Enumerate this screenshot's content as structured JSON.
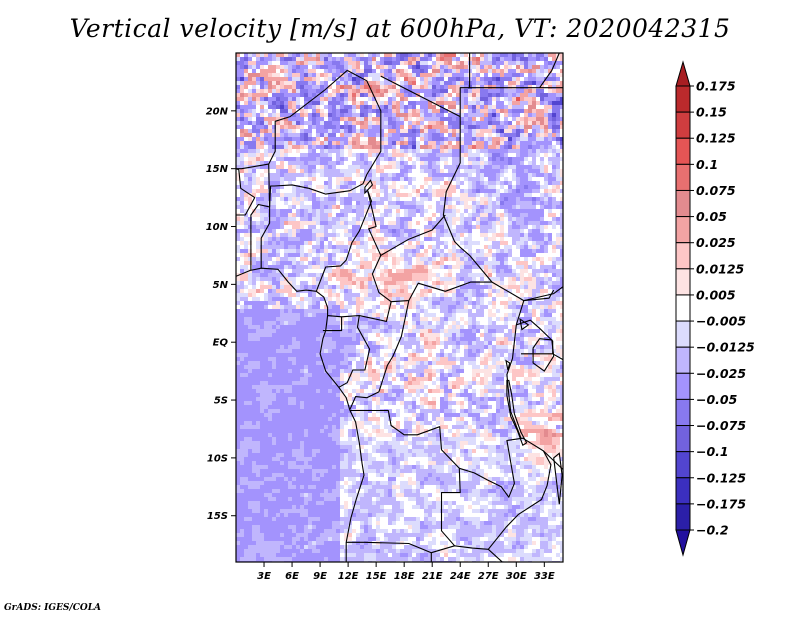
{
  "chart_data": {
    "type": "heatmap",
    "title": "Vertical velocity [m/s] at 600hPa, VT: 2020042315",
    "variable": "Vertical velocity",
    "units": "m/s",
    "level": "600hPa",
    "valid_time": "2020042315",
    "xlabel": "",
    "ylabel": "",
    "x_range_deg": [
      0,
      35
    ],
    "y_range_deg": [
      -19,
      25
    ],
    "x_ticks": [
      {
        "value": 3,
        "label": "3E"
      },
      {
        "value": 6,
        "label": "6E"
      },
      {
        "value": 9,
        "label": "9E"
      },
      {
        "value": 12,
        "label": "12E"
      },
      {
        "value": 15,
        "label": "15E"
      },
      {
        "value": 18,
        "label": "18E"
      },
      {
        "value": 21,
        "label": "21E"
      },
      {
        "value": 24,
        "label": "24E"
      },
      {
        "value": 27,
        "label": "27E"
      },
      {
        "value": 30,
        "label": "30E"
      },
      {
        "value": 33,
        "label": "33E"
      }
    ],
    "y_ticks": [
      {
        "value": 20,
        "label": "20N"
      },
      {
        "value": 15,
        "label": "15N"
      },
      {
        "value": 10,
        "label": "10N"
      },
      {
        "value": 5,
        "label": "5N"
      },
      {
        "value": 0,
        "label": "EQ"
      },
      {
        "value": -5,
        "label": "5S"
      },
      {
        "value": -10,
        "label": "10S"
      },
      {
        "value": -15,
        "label": "15S"
      }
    ],
    "colorbar": {
      "orientation": "vertical",
      "placement": "right",
      "levels": [
        {
          "label": "0.175",
          "value": 0.175
        },
        {
          "label": "0.15",
          "value": 0.15
        },
        {
          "label": "0.125",
          "value": 0.125
        },
        {
          "label": "0.1",
          "value": 0.1
        },
        {
          "label": "0.075",
          "value": 0.075
        },
        {
          "label": "0.05",
          "value": 0.05
        },
        {
          "label": "0.025",
          "value": 0.025
        },
        {
          "label": "0.0125",
          "value": 0.0125
        },
        {
          "label": "0.005",
          "value": 0.005
        },
        {
          "label": "-0.005",
          "value": -0.005
        },
        {
          "label": "-0.0125",
          "value": -0.0125
        },
        {
          "label": "-0.025",
          "value": -0.025
        },
        {
          "label": "-0.05",
          "value": -0.05
        },
        {
          "label": "-0.075",
          "value": -0.075
        },
        {
          "label": "-0.1",
          "value": -0.1
        },
        {
          "label": "-0.125",
          "value": -0.125
        },
        {
          "label": "-0.175",
          "value": -0.175
        },
        {
          "label": "-0.2",
          "value": -0.2
        }
      ],
      "colors_top_to_bottom": [
        "#a81e22",
        "#bb2a2c",
        "#cf3d3f",
        "#e45555",
        "#e87070",
        "#e38b8f",
        "#f3a3a3",
        "#fdc6c6",
        "#fde3e3",
        "#ffffff",
        "#dcdcfd",
        "#c0b6fd",
        "#a393fd",
        "#8879ef",
        "#7262de",
        "#5245d0",
        "#3b2fbf",
        "#2b1fa8",
        "#22109e"
      ],
      "extend": "both"
    },
    "field_summary": {
      "predominant_positive_regions": [
        "Sahel/Niger-Chad north (~17-24N, 3-22E)",
        "Cameroon/CAR (~3-10N, 10-25E)",
        "East African lakes (~5-10S, 30-34E)"
      ],
      "predominant_negative_regions": [
        "Gulf of Guinea / South Atlantic (~0-19S, 0-12E)",
        "Chad/Sudan east (~12-20N, 22-34E)",
        "Angola/Zambia (~10-18S, 15-30E)"
      ],
      "value_range_shown": [
        -0.2,
        0.175
      ]
    }
  },
  "footer": {
    "credit": "GrADS: IGES/COLA"
  }
}
